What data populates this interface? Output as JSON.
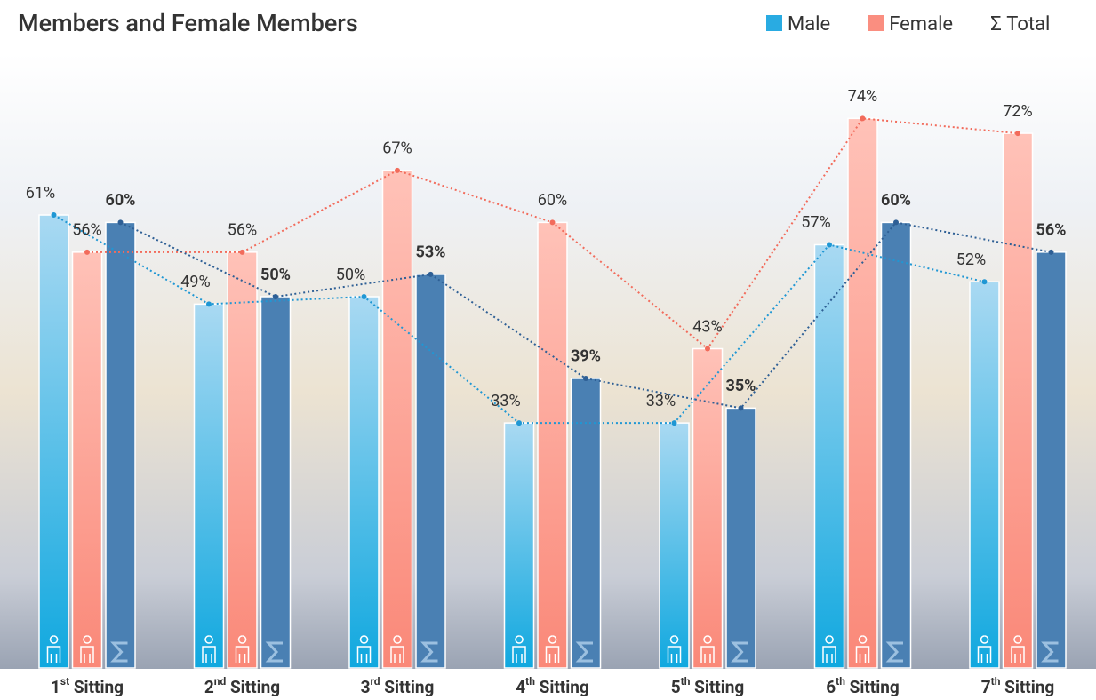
{
  "chart_data": {
    "type": "bar",
    "title": "Members and Female Members",
    "categories": [
      "1st Sitting",
      "2nd Sitting",
      "3rd Sitting",
      "4th Sitting",
      "5th Sitting",
      "6th Sitting",
      "7th Sitting"
    ],
    "series": [
      {
        "name": "Male",
        "color": "#29abe2",
        "values": [
          61,
          49,
          50,
          33,
          33,
          57,
          52
        ],
        "value_labels": [
          "61%",
          "49%",
          "50%",
          "33%",
          "33%",
          "57%",
          "52%"
        ]
      },
      {
        "name": "Female",
        "color": "#fa8e80",
        "values": [
          56,
          56,
          67,
          60,
          43,
          74,
          72
        ],
        "value_labels": [
          "56%",
          "56%",
          "67%",
          "60%",
          "43%",
          "74%",
          "72%"
        ]
      },
      {
        "name": "Σ Total",
        "color": "#4a7fb3",
        "values": [
          60,
          50,
          53,
          39,
          35,
          60,
          56
        ],
        "value_labels": [
          "60%",
          "50%",
          "53%",
          "39%",
          "35%",
          "60%",
          "56%"
        ]
      }
    ]
  }
}
